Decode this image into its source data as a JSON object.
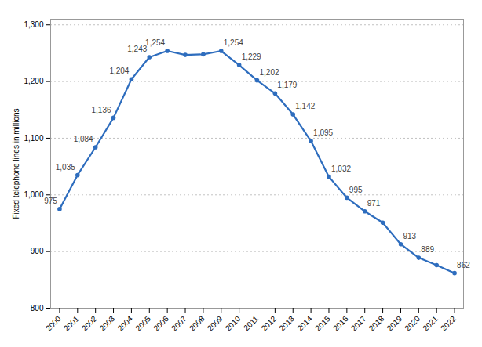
{
  "chart_data": {
    "type": "line",
    "ylabel": "Fixed telephone lines in millions",
    "x": [
      2000,
      2001,
      2002,
      2003,
      2004,
      2005,
      2006,
      2007,
      2008,
      2009,
      2010,
      2011,
      2012,
      2013,
      2014,
      2015,
      2016,
      2017,
      2018,
      2019,
      2020,
      2021,
      2022
    ],
    "values": [
      975,
      1035,
      1084,
      1136,
      1204,
      1243,
      1254,
      1247,
      1248,
      1254,
      1229,
      1202,
      1179,
      1142,
      1095,
      1032,
      995,
      971,
      951,
      913,
      889,
      876,
      862
    ],
    "value_labels": [
      "975",
      "1,035",
      "1,084",
      "1,136",
      "1,204",
      "1,243",
      "1,254",
      null,
      null,
      "1,254",
      "1,229",
      "1,202",
      "1,179",
      "1,142",
      "1,095",
      "1,032",
      "995",
      "971",
      null,
      "913",
      "889",
      null,
      "862"
    ],
    "data_labels": true,
    "color": "#2e6dbe",
    "marker": "circle",
    "xlim": [
      1999.5,
      2022.5
    ],
    "xticks": [
      2000,
      2001,
      2002,
      2003,
      2004,
      2005,
      2006,
      2007,
      2008,
      2009,
      2010,
      2011,
      2012,
      2013,
      2014,
      2015,
      2016,
      2017,
      2018,
      2019,
      2020,
      2021,
      2022
    ],
    "ylim": [
      800,
      1310
    ],
    "yticks": [
      800,
      900,
      {
        "value": 1000,
        "label": "1,000"
      },
      {
        "value": 1100,
        "label": "1,100"
      },
      {
        "value": 1200,
        "label": "1,200"
      },
      {
        "value": 1300,
        "label": "1,300"
      }
    ],
    "grid": true
  }
}
